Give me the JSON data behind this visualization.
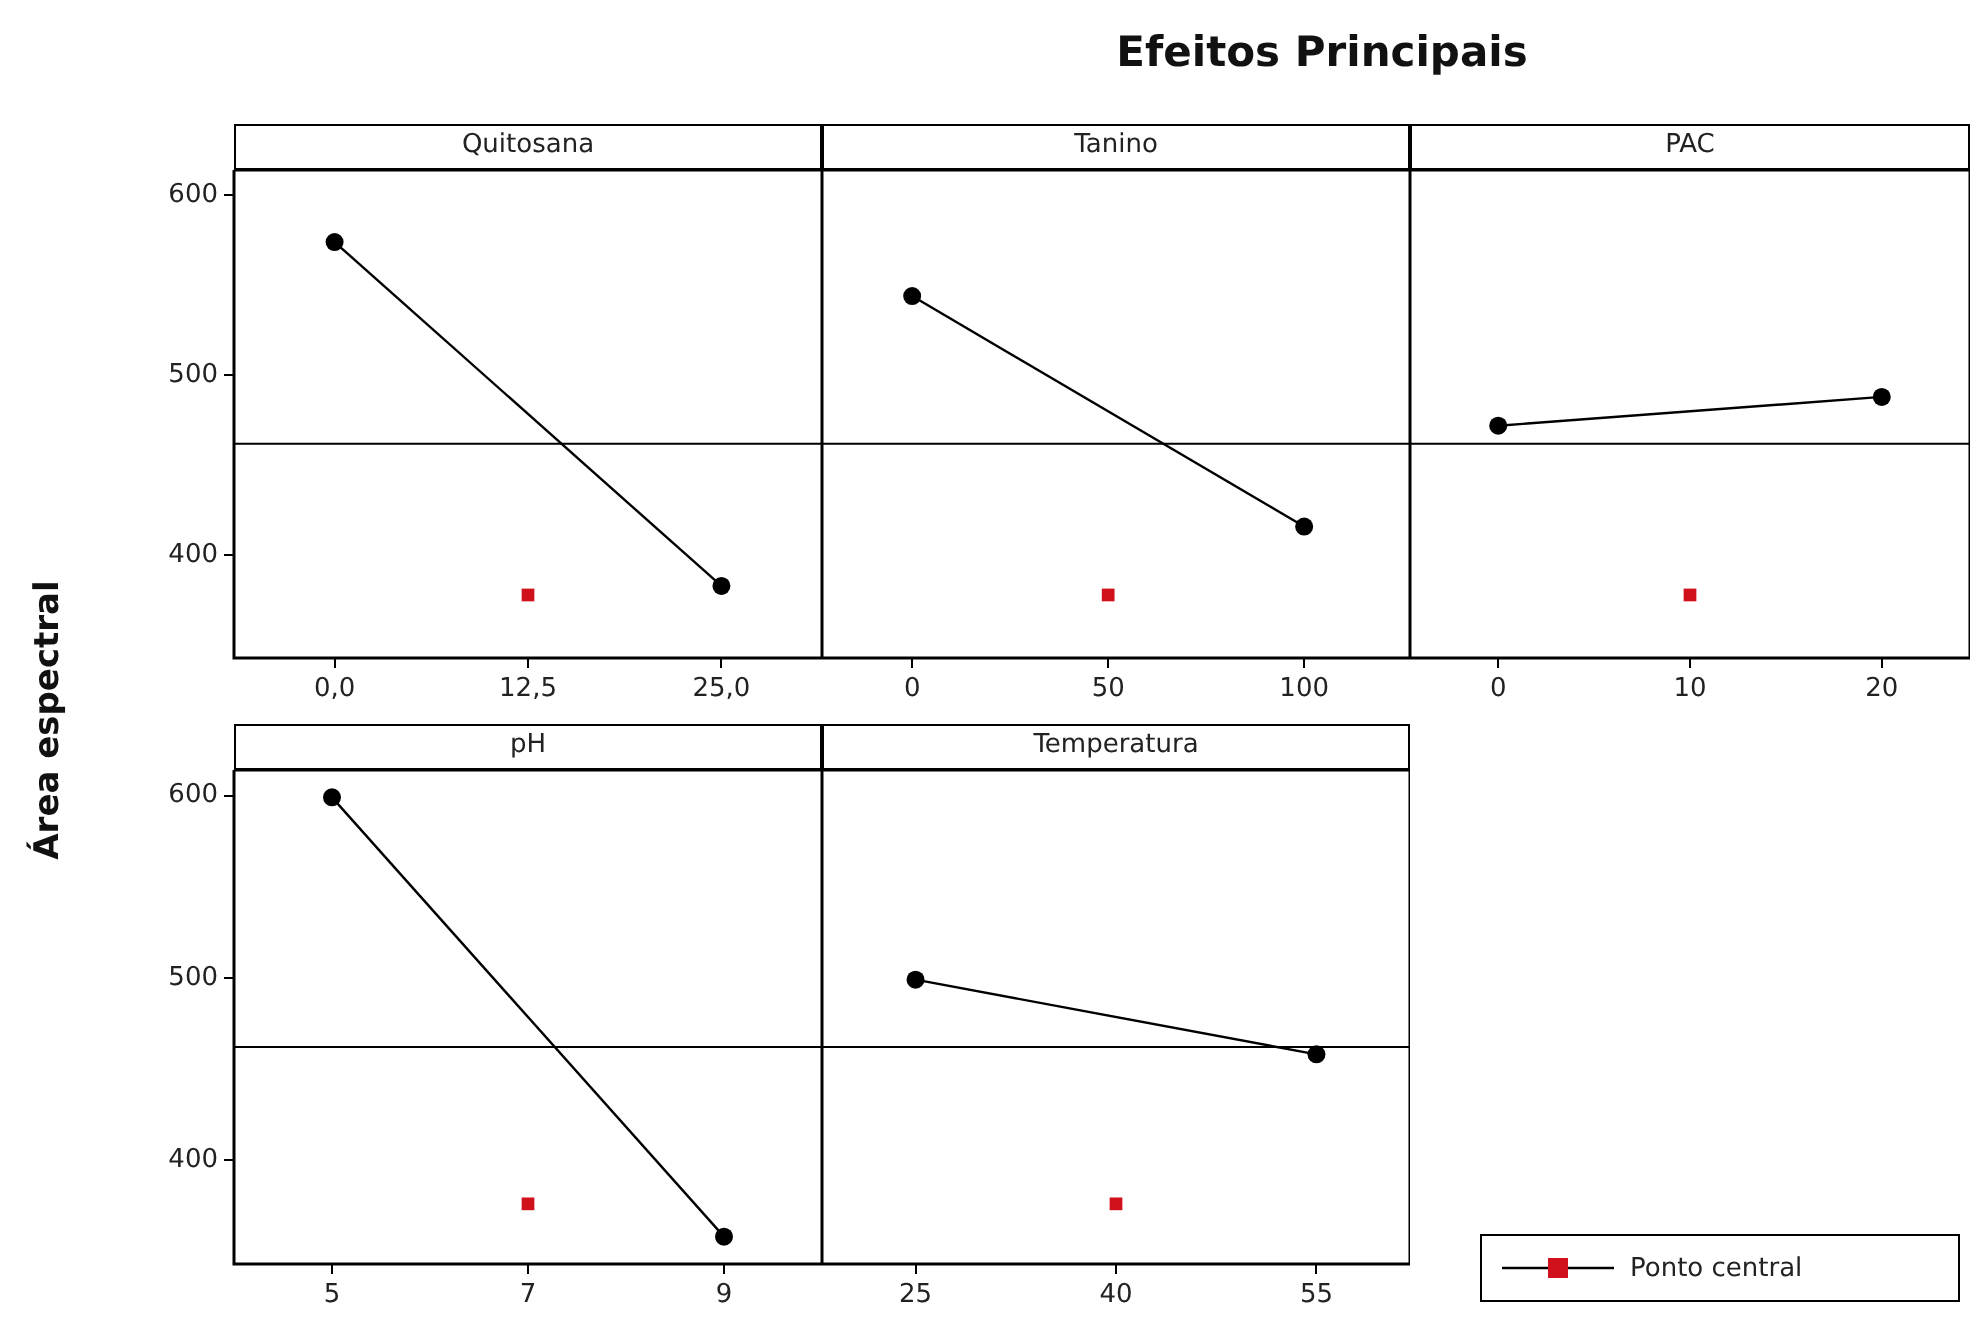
{
  "chart_data": [
    {
      "type": "line",
      "title": "Quitosana",
      "ylabel": "Área espectral",
      "annotations": [
        "Efeitos Principais"
      ],
      "x": [
        0,
        25
      ],
      "series": [
        {
          "color": "#000000",
          "marker": "circle",
          "values": [
            574,
            383
          ]
        },
        {
          "type": "scatter",
          "color": "#d0101a",
          "marker": "square",
          "x": [
            12.5
          ],
          "values": [
            378
          ]
        }
      ],
      "xlim": [
        -6.5,
        31.5
      ],
      "xticks": [
        {
          "value": 0,
          "label": "0,0"
        },
        {
          "value": 12.5,
          "label": "12,5"
        },
        {
          "value": 25,
          "label": "25,0"
        }
      ],
      "ylim": [
        343,
        614
      ],
      "yticks": [
        400,
        500,
        600
      ],
      "ref_lines": [
        {
          "axis": "y",
          "value": 462,
          "color": "#000000"
        }
      ]
    },
    {
      "type": "line",
      "title": "Tanino",
      "x": [
        0,
        100
      ],
      "series": [
        {
          "color": "#000000",
          "marker": "circle",
          "values": [
            544,
            416
          ]
        },
        {
          "type": "scatter",
          "color": "#d0101a",
          "marker": "square",
          "x": [
            50
          ],
          "values": [
            378
          ]
        }
      ],
      "xlim": [
        -23,
        127
      ],
      "xticks": [
        0,
        50,
        100
      ],
      "ylim": [
        343,
        614
      ],
      "yticks": [
        400,
        500,
        600
      ],
      "tick_labels": "x",
      "ref_lines": [
        {
          "axis": "y",
          "value": 462,
          "color": "#000000"
        }
      ]
    },
    {
      "type": "line",
      "title": "PAC",
      "x": [
        0,
        20
      ],
      "series": [
        {
          "color": "#000000",
          "marker": "circle",
          "values": [
            472,
            488
          ]
        },
        {
          "type": "scatter",
          "color": "#d0101a",
          "marker": "square",
          "x": [
            10
          ],
          "values": [
            378
          ]
        }
      ],
      "xlim": [
        -4.6,
        24.6
      ],
      "xticks": [
        0,
        10,
        20
      ],
      "ylim": [
        343,
        614
      ],
      "yticks": [
        400,
        500,
        600
      ],
      "tick_labels": "x",
      "ref_lines": [
        {
          "axis": "y",
          "value": 462,
          "color": "#000000"
        }
      ]
    },
    {
      "type": "line",
      "title": "pH",
      "x": [
        5,
        9
      ],
      "series": [
        {
          "color": "#000000",
          "marker": "circle",
          "values": [
            599,
            358
          ]
        },
        {
          "type": "scatter",
          "color": "#d0101a",
          "marker": "square",
          "x": [
            7
          ],
          "values": [
            376
          ]
        }
      ],
      "xlim": [
        4,
        10
      ],
      "xticks": [
        5,
        7,
        9
      ],
      "ylim": [
        343,
        614
      ],
      "yticks": [
        400,
        500,
        600
      ],
      "ref_lines": [
        {
          "axis": "y",
          "value": 462,
          "color": "#000000"
        }
      ]
    },
    {
      "type": "line",
      "title": "Temperatura",
      "x": [
        25,
        55
      ],
      "legend": "bottom right",
      "series": [
        {
          "color": "#000000",
          "marker": "circle",
          "values": [
            499,
            458
          ]
        },
        {
          "type": "scatter",
          "name": "Ponto central",
          "color": "#d0101a",
          "marker": "square",
          "x": [
            40
          ],
          "values": [
            376
          ]
        }
      ],
      "xlim": [
        18,
        62
      ],
      "xticks": [
        25,
        40,
        55
      ],
      "ylim": [
        343,
        614
      ],
      "yticks": [
        400,
        500,
        600
      ],
      "tick_labels": "x",
      "ref_lines": [
        {
          "axis": "y",
          "value": 462,
          "color": "#000000"
        }
      ]
    }
  ]
}
